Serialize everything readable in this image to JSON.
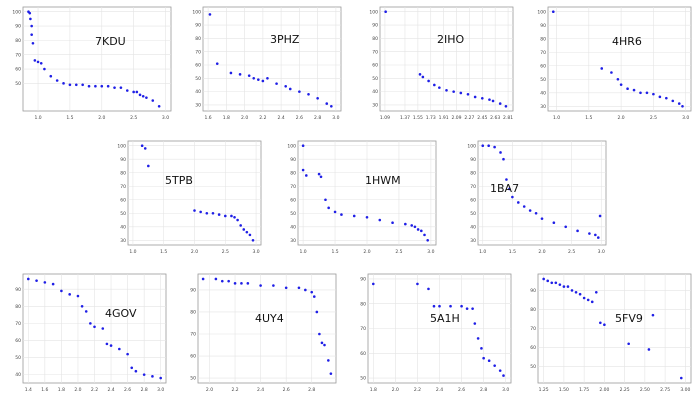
{
  "point_color": "#1f1fe6",
  "chart_data": [
    {
      "type": "scatter",
      "title": "7KDU",
      "xticks": [
        "1.0",
        "1.5",
        "2.0",
        "2.5",
        "3.0"
      ],
      "yticks": [
        "50",
        "60",
        "70",
        "80",
        "90",
        "100"
      ],
      "x": [
        0.85,
        0.87,
        0.88,
        0.9,
        0.9,
        0.92,
        0.95,
        1.0,
        1.05,
        1.1,
        1.2,
        1.3,
        1.4,
        1.5,
        1.6,
        1.7,
        1.8,
        1.9,
        2.0,
        2.1,
        2.2,
        2.3,
        2.4,
        2.5,
        2.55,
        2.6,
        2.65,
        2.7,
        2.8,
        2.9
      ],
      "y": [
        100,
        99,
        95,
        90,
        84,
        78,
        66,
        65,
        64,
        60,
        55,
        52,
        50,
        49,
        49,
        49,
        48,
        48,
        48,
        48,
        47,
        47,
        45,
        44,
        44,
        42,
        41,
        40,
        38,
        34
      ]
    },
    {
      "type": "scatter",
      "title": "3PHZ",
      "xticks": [
        "1.6",
        "1.8",
        "2.0",
        "2.2",
        "2.4",
        "2.6",
        "2.8",
        "3.0"
      ],
      "yticks": [
        "30",
        "40",
        "50",
        "60",
        "70",
        "80",
        "90",
        "100"
      ],
      "x": [
        1.62,
        1.7,
        1.85,
        1.95,
        2.05,
        2.1,
        2.15,
        2.2,
        2.25,
        2.35,
        2.45,
        2.5,
        2.6,
        2.7,
        2.8,
        2.9,
        2.95
      ],
      "y": [
        98,
        61,
        54,
        53,
        52,
        50,
        49,
        48,
        50,
        46,
        44,
        42,
        40,
        38,
        35,
        31,
        29
      ]
    },
    {
      "type": "scatter",
      "title": "2IHO",
      "xticks": [
        "1.09",
        "1.37",
        "1.55",
        "1.73",
        "1.91",
        "2.09",
        "2.27",
        "2.45",
        "2.63",
        "2.81"
      ],
      "yticks": [
        "30",
        "40",
        "50",
        "60",
        "70",
        "80",
        "90",
        "100"
      ],
      "x": [
        1.1,
        1.58,
        1.62,
        1.7,
        1.78,
        1.85,
        1.95,
        2.05,
        2.15,
        2.25,
        2.35,
        2.45,
        2.55,
        2.6,
        2.7,
        2.78
      ],
      "y": [
        100,
        53,
        51,
        48,
        45,
        43,
        41,
        40,
        39,
        38,
        36,
        35,
        34,
        33,
        31,
        29
      ]
    },
    {
      "type": "scatter",
      "title": "4HR6",
      "xticks": [
        "1.0",
        "1.5",
        "2.0",
        "2.5",
        "3.0"
      ],
      "yticks": [
        "30",
        "40",
        "50",
        "60",
        "70",
        "80",
        "90",
        "100"
      ],
      "x": [
        0.95,
        1.7,
        1.85,
        1.95,
        2.0,
        2.1,
        2.2,
        2.3,
        2.4,
        2.5,
        2.6,
        2.7,
        2.8,
        2.9,
        2.95
      ],
      "y": [
        100,
        58,
        55,
        50,
        46,
        43,
        42,
        40,
        40,
        39,
        37,
        36,
        34,
        32,
        30
      ]
    },
    {
      "type": "scatter",
      "title": "5TPB",
      "xticks": [
        "1.0",
        "1.5",
        "2.0",
        "2.5",
        "3.0"
      ],
      "yticks": [
        "30",
        "40",
        "50",
        "60",
        "70",
        "80",
        "90",
        "100"
      ],
      "x": [
        1.15,
        1.2,
        1.25,
        2.0,
        2.1,
        2.2,
        2.3,
        2.4,
        2.5,
        2.6,
        2.65,
        2.7,
        2.75,
        2.8,
        2.85,
        2.9,
        2.95
      ],
      "y": [
        100,
        98,
        85,
        52,
        51,
        50,
        50,
        49,
        48,
        48,
        47,
        45,
        41,
        38,
        36,
        34,
        30
      ]
    },
    {
      "type": "scatter",
      "title": "1HWM",
      "xticks": [
        "1.0",
        "1.5",
        "2.0",
        "2.5",
        "3.0"
      ],
      "yticks": [
        "30",
        "40",
        "50",
        "60",
        "70",
        "80",
        "90",
        "100"
      ],
      "x": [
        1.0,
        1.0,
        1.05,
        1.25,
        1.28,
        1.35,
        1.4,
        1.5,
        1.6,
        1.8,
        2.0,
        2.2,
        2.4,
        2.6,
        2.7,
        2.75,
        2.8,
        2.85,
        2.9,
        2.95
      ],
      "y": [
        100,
        82,
        78,
        79,
        77,
        60,
        54,
        51,
        49,
        48,
        47,
        45,
        43,
        42,
        41,
        40,
        38,
        37,
        34,
        30
      ]
    },
    {
      "type": "scatter",
      "title": "1BA7",
      "xticks": [
        "1.0",
        "1.5",
        "2.0",
        "2.5",
        "3.0"
      ],
      "yticks": [
        "30",
        "40",
        "50",
        "60",
        "70",
        "80",
        "90",
        "100"
      ],
      "x": [
        1.0,
        1.1,
        1.2,
        1.3,
        1.35,
        1.4,
        1.45,
        1.5,
        1.6,
        1.7,
        1.8,
        1.9,
        2.0,
        2.2,
        2.4,
        2.6,
        2.8,
        2.9,
        2.95,
        2.98
      ],
      "y": [
        100,
        100,
        99,
        95,
        90,
        75,
        68,
        62,
        58,
        55,
        52,
        50,
        46,
        43,
        40,
        37,
        35,
        34,
        32,
        48
      ]
    },
    {
      "type": "scatter",
      "title": "4GOV",
      "xticks": [
        "1.4",
        "1.6",
        "1.8",
        "2.0",
        "2.2",
        "2.4",
        "2.6",
        "2.8",
        "3.0"
      ],
      "yticks": [
        "40",
        "50",
        "60",
        "70",
        "80",
        "90"
      ],
      "x": [
        1.4,
        1.5,
        1.6,
        1.7,
        1.8,
        1.9,
        2.0,
        2.05,
        2.1,
        2.15,
        2.2,
        2.3,
        2.35,
        2.4,
        2.5,
        2.6,
        2.65,
        2.7,
        2.8,
        2.9,
        3.0
      ],
      "y": [
        96,
        95,
        94,
        93,
        89,
        87,
        86,
        80,
        77,
        70,
        68,
        67,
        58,
        57,
        55,
        52,
        44,
        42,
        40,
        39,
        38
      ]
    },
    {
      "type": "scatter",
      "title": "4UY4",
      "xticks": [
        "2.0",
        "2.2",
        "2.4",
        "2.6",
        "2.8"
      ],
      "yticks": [
        "50",
        "60",
        "70",
        "80",
        "90"
      ],
      "x": [
        1.95,
        2.05,
        2.1,
        2.15,
        2.2,
        2.25,
        2.3,
        2.4,
        2.5,
        2.6,
        2.7,
        2.75,
        2.8,
        2.82,
        2.84,
        2.86,
        2.88,
        2.9,
        2.93,
        2.95
      ],
      "y": [
        95,
        95,
        94,
        94,
        93,
        93,
        93,
        92,
        92,
        91,
        91,
        90,
        89,
        87,
        80,
        70,
        66,
        65,
        58,
        52
      ]
    },
    {
      "type": "scatter",
      "title": "5A1H",
      "xticks": [
        "1.8",
        "2.0",
        "2.2",
        "2.4",
        "2.6",
        "2.8",
        "3.0"
      ],
      "yticks": [
        "50",
        "60",
        "70",
        "80",
        "90"
      ],
      "x": [
        1.8,
        2.2,
        2.3,
        2.35,
        2.4,
        2.5,
        2.6,
        2.65,
        2.7,
        2.72,
        2.75,
        2.78,
        2.8,
        2.85,
        2.9,
        2.95,
        2.98
      ],
      "y": [
        88,
        88,
        86,
        79,
        79,
        79,
        79,
        78,
        78,
        72,
        66,
        62,
        58,
        57,
        55,
        53,
        51
      ]
    },
    {
      "type": "scatter",
      "title": "5FV9",
      "xticks": [
        "1.25",
        "1.50",
        "1.75",
        "2.00",
        "2.25",
        "2.50",
        "2.75",
        "3.00"
      ],
      "yticks": [
        "50",
        "60",
        "70",
        "80",
        "90"
      ],
      "x": [
        1.25,
        1.3,
        1.35,
        1.4,
        1.45,
        1.5,
        1.55,
        1.6,
        1.65,
        1.7,
        1.75,
        1.8,
        1.85,
        1.9,
        1.95,
        2.0,
        2.3,
        2.55,
        2.6,
        2.95
      ],
      "y": [
        96,
        95,
        94,
        94,
        93,
        92,
        92,
        90,
        89,
        88,
        86,
        85,
        84,
        89,
        73,
        72,
        62,
        59,
        77,
        44
      ]
    }
  ]
}
